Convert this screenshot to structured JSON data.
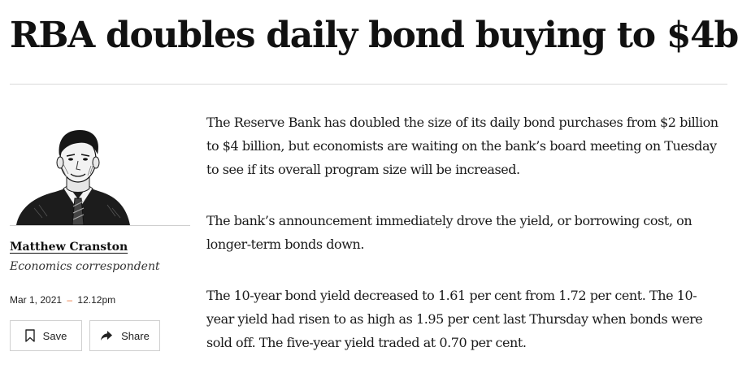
{
  "article": {
    "headline": "RBA doubles daily bond buying to $4b",
    "paragraphs": [
      "The Reserve Bank has doubled the size of its daily bond purchases from $2 billion to $4 billion, but economists are waiting on the bank’s board meeting on Tuesday to see if its overall program size will be increased.",
      "The bank’s announcement immediately drove the yield, or borrowing cost, on longer-term bonds down.",
      "The 10-year bond yield decreased to 1.61 per cent from 1.72 per cent. The 10-year yield had risen to as high as 1.95 per cent last Thursday when bonds were sold off. The five-year yield traded at 0.70 per cent."
    ]
  },
  "byline": {
    "author_name": "Matthew Cranston",
    "author_role": "Economics correspondent",
    "date": "Mar 1, 2021",
    "separator": "–",
    "time": "12.12pm",
    "portrait_icon": "author-portrait-illustration"
  },
  "actions": {
    "save_label": "Save",
    "save_icon": "bookmark-icon",
    "share_label": "Share",
    "share_icon": "share-arrow-icon"
  },
  "colors": {
    "separator_accent": "#e8753a",
    "rule": "#d9d9d9",
    "text": "#1a1a1a"
  }
}
